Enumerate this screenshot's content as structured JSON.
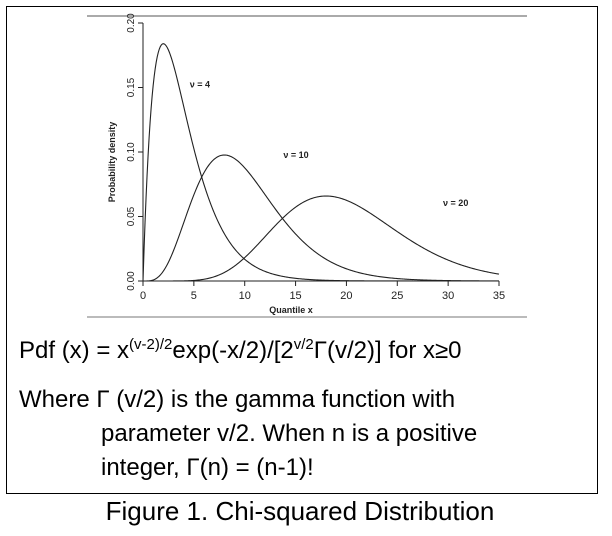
{
  "chart_data": {
    "type": "line",
    "xlabel": "Quantile x",
    "ylabel": "Probability density",
    "xlim": [
      0,
      35
    ],
    "ylim": [
      0,
      0.2
    ],
    "x_ticks": [
      "0",
      "5",
      "10",
      "15",
      "20",
      "25",
      "30",
      "35"
    ],
    "y_ticks": [
      "0.00",
      "0.05",
      "0.10",
      "0.15",
      "0.20"
    ],
    "grid": false,
    "series": [
      {
        "name": "ν = 4",
        "dof": 4,
        "peak": {
          "x": 2,
          "y": 0.184
        }
      },
      {
        "name": "ν = 10",
        "dof": 10,
        "peak": {
          "x": 8,
          "y": 0.098
        }
      },
      {
        "name": "ν = 20",
        "dof": 20,
        "peak": {
          "x": 18,
          "y": 0.066
        }
      }
    ],
    "line_color": "#222222"
  },
  "formula": {
    "lhs": "Pdf (x) = x",
    "exp1": "(v-2)/2",
    "mid": "exp(-x/2)/[2",
    "exp2": "v/2",
    "rhs": "Γ(v/2)] for x≥0"
  },
  "description": {
    "line1": "Where Γ (v/2) is the gamma function with",
    "line2": "parameter v/2. When n is a positive",
    "line3": "integer, Γ(n) = (n-1)!"
  },
  "caption": "Figure 1. Chi-squared Distribution"
}
